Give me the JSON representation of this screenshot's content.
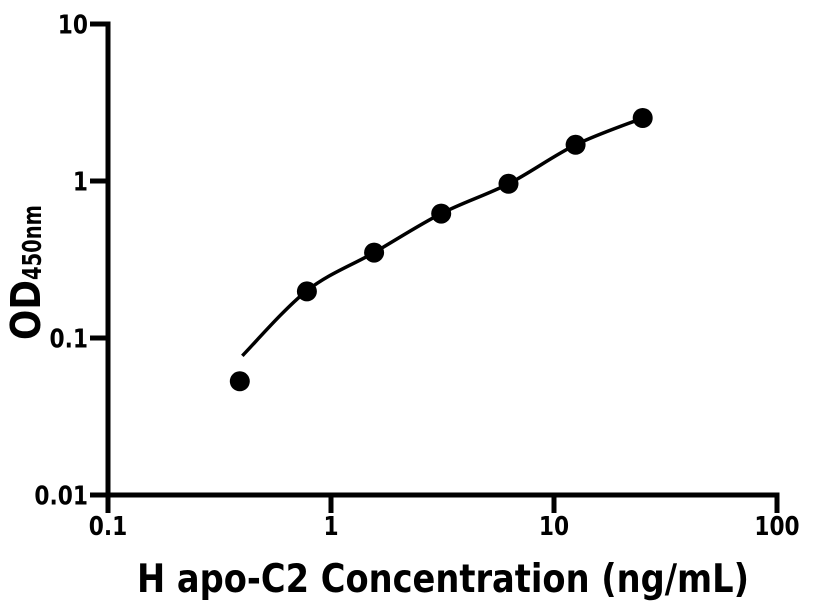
{
  "chart_data": {
    "type": "scatter",
    "title": "",
    "xlabel": "H apo-C2 Concentration (ng/mL)",
    "ylabel_main": "OD",
    "ylabel_subscript": "450nm",
    "x_scale": "log",
    "y_scale": "log",
    "xlim": [
      0.1,
      100
    ],
    "ylim": [
      0.01,
      10
    ],
    "grid": false,
    "legend_position": "none",
    "x_ticks": [
      {
        "value": 0.1,
        "label": "0.1"
      },
      {
        "value": 1,
        "label": "1"
      },
      {
        "value": 10,
        "label": "10"
      },
      {
        "value": 100,
        "label": "100"
      }
    ],
    "y_ticks": [
      {
        "value": 0.01,
        "label": "0.01"
      },
      {
        "value": 0.1,
        "label": "0.1"
      },
      {
        "value": 1,
        "label": "1"
      },
      {
        "value": 10,
        "label": "10"
      }
    ],
    "series": [
      {
        "name": "standard points",
        "type": "scatter",
        "marker": "filled-circle",
        "color": "#000000",
        "points": [
          {
            "x": 0.39,
            "y": 0.053
          },
          {
            "x": 0.78,
            "y": 0.198
          },
          {
            "x": 1.56,
            "y": 0.35
          },
          {
            "x": 3.12,
            "y": 0.62
          },
          {
            "x": 6.25,
            "y": 0.96
          },
          {
            "x": 12.5,
            "y": 1.7
          },
          {
            "x": 25,
            "y": 2.52
          }
        ]
      },
      {
        "name": "fitted curve",
        "type": "line",
        "color": "#000000",
        "points": [
          {
            "x": 0.4,
            "y": 0.077
          },
          {
            "x": 0.78,
            "y": 0.2
          },
          {
            "x": 1.56,
            "y": 0.35
          },
          {
            "x": 3.12,
            "y": 0.62
          },
          {
            "x": 6.25,
            "y": 0.96
          },
          {
            "x": 12.5,
            "y": 1.7
          },
          {
            "x": 25,
            "y": 2.52
          }
        ]
      }
    ],
    "colors": {
      "background": "#ffffff",
      "axis": "#000000",
      "marker": "#000000",
      "curve": "#000000"
    }
  }
}
